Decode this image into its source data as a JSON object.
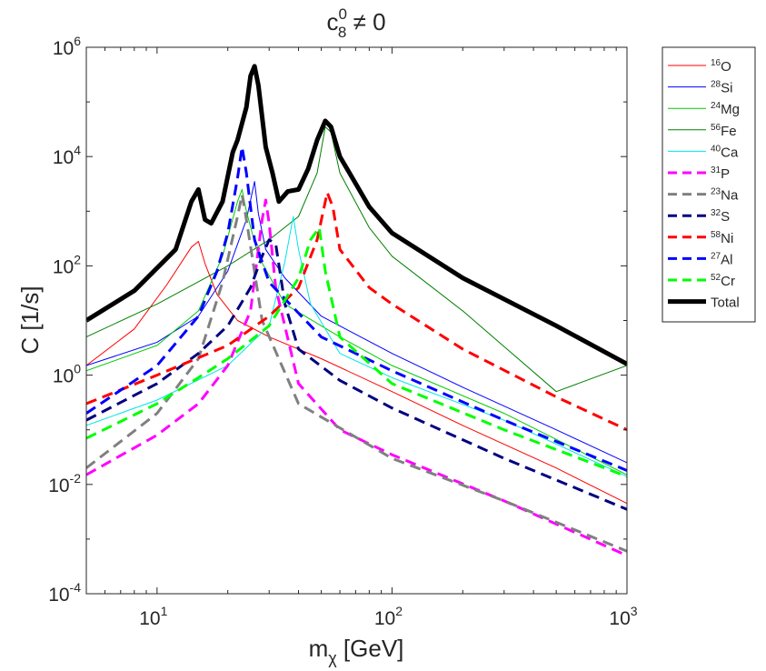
{
  "chart_data": {
    "type": "line",
    "title": {
      "base": "c",
      "sub": "8",
      "sup": "0",
      "rest": " ≠ 0"
    },
    "xlabel": {
      "base": "m",
      "sub": "χ",
      "rest": " [GeV]"
    },
    "ylabel": "C [1/s]",
    "xscale": "log",
    "yscale": "log",
    "xlim": [
      5,
      1000
    ],
    "ylim": [
      0.0001,
      1000000
    ],
    "x_ticks": [
      {
        "value": 10,
        "base": "10",
        "exp": "1"
      },
      {
        "value": 100,
        "base": "10",
        "exp": "2"
      },
      {
        "value": 1000,
        "base": "10",
        "exp": "3"
      }
    ],
    "y_ticks": [
      {
        "value": 0.0001,
        "base": "10",
        "exp": "-4"
      },
      {
        "value": 0.01,
        "base": "10",
        "exp": "-2"
      },
      {
        "value": 1,
        "base": "10",
        "exp": "0"
      },
      {
        "value": 100,
        "base": "10",
        "exp": "2"
      },
      {
        "value": 10000,
        "base": "10",
        "exp": "4"
      },
      {
        "value": 1000000,
        "base": "10",
        "exp": "6"
      }
    ],
    "grid": false,
    "legend_position": "outside-right",
    "series": [
      {
        "name": "O",
        "mass_number": "16",
        "color": "#ff0000",
        "style": "solid",
        "width": 1,
        "points": [
          [
            5,
            1.5
          ],
          [
            8,
            7
          ],
          [
            11,
            45
          ],
          [
            14,
            220
          ],
          [
            15,
            280
          ],
          [
            16,
            110
          ],
          [
            18,
            30
          ],
          [
            22,
            10
          ],
          [
            30,
            5
          ],
          [
            50,
            2
          ],
          [
            100,
            0.5
          ],
          [
            200,
            0.12
          ],
          [
            500,
            0.02
          ],
          [
            1000,
            0.0045
          ]
        ]
      },
      {
        "name": "Si",
        "mass_number": "28",
        "color": "#0000ff",
        "style": "solid",
        "width": 1,
        "points": [
          [
            5,
            1.5
          ],
          [
            10,
            4
          ],
          [
            15,
            12
          ],
          [
            20,
            80
          ],
          [
            24,
            700
          ],
          [
            26,
            3500
          ],
          [
            27,
            900
          ],
          [
            29,
            200
          ],
          [
            35,
            60
          ],
          [
            50,
            12
          ],
          [
            100,
            2.5
          ],
          [
            200,
            0.6
          ],
          [
            500,
            0.1
          ],
          [
            1000,
            0.025
          ]
        ]
      },
      {
        "name": "Mg",
        "mass_number": "24",
        "color": "#00cc00",
        "style": "solid",
        "width": 1,
        "points": [
          [
            5,
            1.2
          ],
          [
            10,
            3.5
          ],
          [
            15,
            15
          ],
          [
            19,
            150
          ],
          [
            22,
            1500
          ],
          [
            23,
            2500
          ],
          [
            24,
            1000
          ],
          [
            27,
            150
          ],
          [
            35,
            20
          ],
          [
            60,
            5
          ],
          [
            100,
            1.5
          ],
          [
            300,
            0.2
          ],
          [
            1000,
            0.015
          ]
        ]
      },
      {
        "name": "Fe",
        "mass_number": "56",
        "color": "#008000",
        "style": "solid",
        "width": 1,
        "points": [
          [
            5,
            5
          ],
          [
            10,
            20
          ],
          [
            20,
            100
          ],
          [
            30,
            300
          ],
          [
            40,
            800
          ],
          [
            48,
            5000
          ],
          [
            52,
            35000
          ],
          [
            55,
            28000
          ],
          [
            60,
            5000
          ],
          [
            80,
            500
          ],
          [
            100,
            150
          ],
          [
            200,
            15
          ],
          [
            500,
            0.5
          ],
          [
            1000,
            1.5
          ]
        ]
      },
      {
        "name": "Ca",
        "mass_number": "40",
        "color": "#00e5e5",
        "style": "solid",
        "width": 1,
        "points": [
          [
            5,
            0.12
          ],
          [
            10,
            0.35
          ],
          [
            20,
            1.5
          ],
          [
            30,
            8
          ],
          [
            35,
            120
          ],
          [
            38,
            800
          ],
          [
            40,
            200
          ],
          [
            45,
            20
          ],
          [
            60,
            2.5
          ],
          [
            100,
            0.9
          ],
          [
            300,
            0.15
          ],
          [
            1000,
            0.014
          ]
        ]
      },
      {
        "name": "P",
        "mass_number": "31",
        "color": "#ff00ff",
        "style": "dashed",
        "width": 3,
        "points": [
          [
            5,
            0.015
          ],
          [
            10,
            0.08
          ],
          [
            15,
            0.3
          ],
          [
            20,
            1.5
          ],
          [
            25,
            15
          ],
          [
            28,
            700
          ],
          [
            29,
            1600
          ],
          [
            30,
            600
          ],
          [
            32,
            40
          ],
          [
            40,
            0.7
          ],
          [
            60,
            0.1
          ],
          [
            100,
            0.035
          ],
          [
            300,
            0.005
          ],
          [
            1000,
            0.0005
          ]
        ]
      },
      {
        "name": "Na",
        "mass_number": "23",
        "color": "#808080",
        "style": "dashed",
        "width": 3,
        "points": [
          [
            5,
            0.02
          ],
          [
            10,
            0.2
          ],
          [
            15,
            2
          ],
          [
            19,
            50
          ],
          [
            22,
            800
          ],
          [
            23,
            2000
          ],
          [
            24,
            700
          ],
          [
            28,
            10
          ],
          [
            40,
            0.3
          ],
          [
            100,
            0.03
          ],
          [
            300,
            0.005
          ],
          [
            1000,
            0.0006
          ]
        ]
      },
      {
        "name": "S",
        "mass_number": "32",
        "color": "#000080",
        "style": "dashed",
        "width": 3,
        "points": [
          [
            5,
            0.15
          ],
          [
            10,
            0.7
          ],
          [
            15,
            2.5
          ],
          [
            20,
            8
          ],
          [
            25,
            40
          ],
          [
            28,
            150
          ],
          [
            30,
            300
          ],
          [
            32,
            250
          ],
          [
            35,
            20
          ],
          [
            40,
            3
          ],
          [
            60,
            0.8
          ],
          [
            100,
            0.25
          ],
          [
            300,
            0.03
          ],
          [
            1000,
            0.0035
          ]
        ]
      },
      {
        "name": "Ni",
        "mass_number": "58",
        "color": "#ff0000",
        "style": "dashed",
        "width": 3,
        "points": [
          [
            5,
            0.3
          ],
          [
            10,
            1
          ],
          [
            20,
            3.5
          ],
          [
            30,
            12
          ],
          [
            40,
            40
          ],
          [
            48,
            300
          ],
          [
            53,
            2200
          ],
          [
            56,
            1200
          ],
          [
            60,
            200
          ],
          [
            80,
            40
          ],
          [
            100,
            20
          ],
          [
            200,
            3
          ],
          [
            500,
            0.4
          ],
          [
            1000,
            0.1
          ]
        ]
      },
      {
        "name": "Al",
        "mass_number": "27",
        "color": "#0000ff",
        "style": "dashed",
        "width": 3,
        "points": [
          [
            5,
            0.2
          ],
          [
            10,
            1.5
          ],
          [
            15,
            12
          ],
          [
            18,
            80
          ],
          [
            20,
            400
          ],
          [
            22,
            4000
          ],
          [
            23,
            15000
          ],
          [
            24,
            5000
          ],
          [
            26,
            300
          ],
          [
            30,
            50
          ],
          [
            50,
            5
          ],
          [
            100,
            1.2
          ],
          [
            300,
            0.15
          ],
          [
            1000,
            0.018
          ]
        ]
      },
      {
        "name": "Cr",
        "mass_number": "52",
        "color": "#00ff00",
        "style": "dashed",
        "width": 3,
        "points": [
          [
            5,
            0.07
          ],
          [
            10,
            0.3
          ],
          [
            15,
            0.9
          ],
          [
            20,
            2
          ],
          [
            30,
            8
          ],
          [
            40,
            60
          ],
          [
            45,
            300
          ],
          [
            49,
            500
          ],
          [
            52,
            80
          ],
          [
            60,
            5
          ],
          [
            100,
            0.7
          ],
          [
            300,
            0.1
          ],
          [
            1000,
            0.014
          ]
        ]
      },
      {
        "name": "Total",
        "mass_number": "",
        "color": "#000000",
        "style": "solid",
        "width": 5,
        "points": [
          [
            5,
            10
          ],
          [
            8,
            35
          ],
          [
            12,
            200
          ],
          [
            14,
            1500
          ],
          [
            15,
            2500
          ],
          [
            16,
            700
          ],
          [
            17,
            600
          ],
          [
            19,
            1500
          ],
          [
            21,
            12000
          ],
          [
            22,
            20000
          ],
          [
            24,
            80000
          ],
          [
            25,
            300000
          ],
          [
            26,
            450000
          ],
          [
            27,
            200000
          ],
          [
            29,
            15000
          ],
          [
            31,
            5000
          ],
          [
            33,
            1500
          ],
          [
            36,
            2300
          ],
          [
            40,
            2500
          ],
          [
            44,
            6000
          ],
          [
            48,
            20000
          ],
          [
            52,
            45000
          ],
          [
            55,
            35000
          ],
          [
            60,
            10000
          ],
          [
            80,
            1200
          ],
          [
            100,
            400
          ],
          [
            200,
            60
          ],
          [
            500,
            8
          ],
          [
            1000,
            1.6
          ]
        ]
      }
    ]
  }
}
